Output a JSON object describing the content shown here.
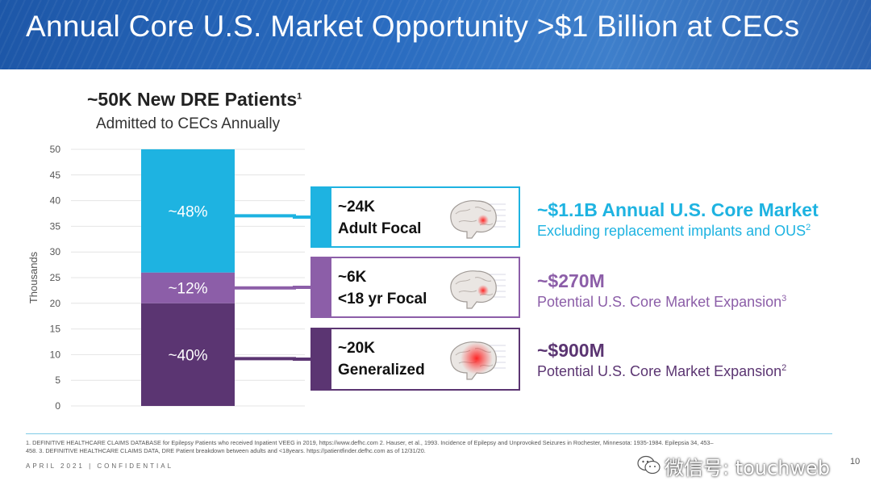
{
  "title": "Annual Core U.S. Market Opportunity >$1 Billion at CECs",
  "chart_heading": "~50K New DRE Patients",
  "chart_heading_sup": "1",
  "chart_subheading": "Admitted to CECs Annually",
  "chart_data": {
    "type": "bar",
    "stacked": true,
    "ylabel": "Thousands",
    "ylim": [
      0,
      50
    ],
    "yticks": [
      0,
      5,
      10,
      15,
      20,
      25,
      30,
      35,
      40,
      45,
      50
    ],
    "grid": true,
    "segments": [
      {
        "name": "Generalized",
        "start": 0,
        "value": 20,
        "label": "~40%",
        "color": "#5b3572"
      },
      {
        "name": "<18 yr Focal",
        "start": 20,
        "value": 6,
        "label": "~12%",
        "color": "#8c5ea8"
      },
      {
        "name": "Adult Focal",
        "start": 26,
        "value": 24,
        "label": "~48%",
        "color": "#1eb3e1"
      }
    ]
  },
  "boxes": [
    {
      "line1": "~24K",
      "line2": "Adult Focal",
      "color": "#1eb3e1"
    },
    {
      "line1": "~6K",
      "line2": "<18 yr Focal",
      "color": "#8c5ea8"
    },
    {
      "line1": "~20K",
      "line2": "Generalized",
      "color": "#5b3572"
    }
  ],
  "markets": [
    {
      "value": "~$1.1B Annual U.S. Core Market",
      "desc": "Excluding replacement implants and OUS",
      "sup": "2",
      "value_color": "#1eb3e1",
      "desc_color": "#1eb3e1"
    },
    {
      "value": "~$270M",
      "desc": "Potential U.S. Core Market  Expansion",
      "sup": "3",
      "value_color": "#8c5ea8",
      "desc_color": "#8c5ea8"
    },
    {
      "value": "~$900M",
      "desc": "Potential U.S. Core Market Expansion",
      "sup": "2",
      "value_color": "#5b3572",
      "desc_color": "#5b3572"
    }
  ],
  "footnotes": [
    "1. DEFINITIVE HEALTHCARE CLAIMS DATABASE for Epilepsy Patients who received Inpatient VEEG in 2019, https://www.defhc.com 2. Hauser, et al., 1993. Incidence of Epilepsy and Unprovoked Seizures in Rochester, Minnesota: 1935-1984. Epilepsia 34, 453–",
    "458.  3. DEFINITIVE HEALTHCARE CLAIMS DATA, DRE Patient breakdown between adults and <18years. https://patientfinder.defhc.com as of 12/31/20."
  ],
  "footer_label": "APRIL 2021 | CONFIDENTIAL",
  "page_number": "10",
  "watermark": "微信号: touchweb"
}
